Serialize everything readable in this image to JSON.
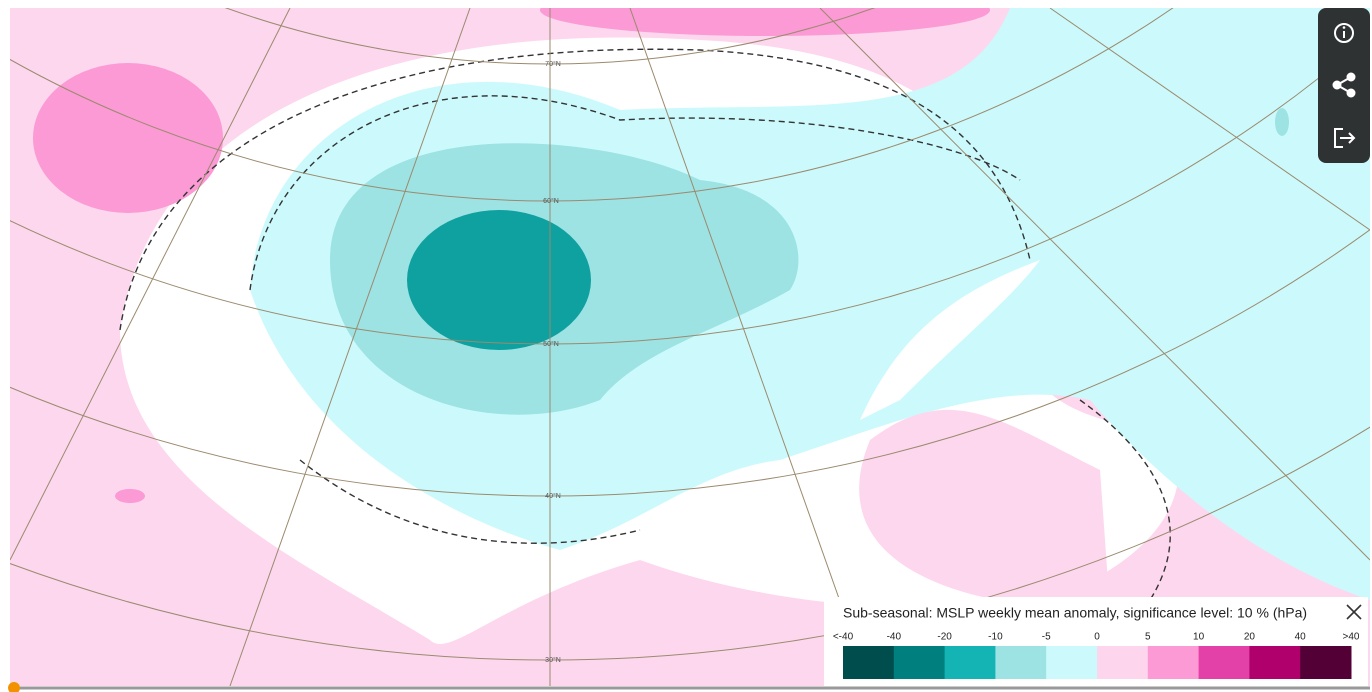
{
  "map": {
    "latitude_labels": [
      "70°N",
      "60°N",
      "50°N",
      "40°N",
      "30°N"
    ]
  },
  "legend": {
    "title": "Sub-seasonal: MSLP weekly mean anomaly, significance level: 10 % (hPa)",
    "labels": [
      "<-40",
      "-40",
      "-20",
      "-10",
      "-5",
      "0",
      "5",
      "10",
      "20",
      "40",
      ">40"
    ],
    "colors": [
      "#004d4d",
      "#007f7f",
      "#14b4b4",
      "#9de3e3",
      "#ccfafc",
      "#fdd5ec",
      "#fb9ad4",
      "#e441a8",
      "#b0006b",
      "#520036"
    ]
  }
}
